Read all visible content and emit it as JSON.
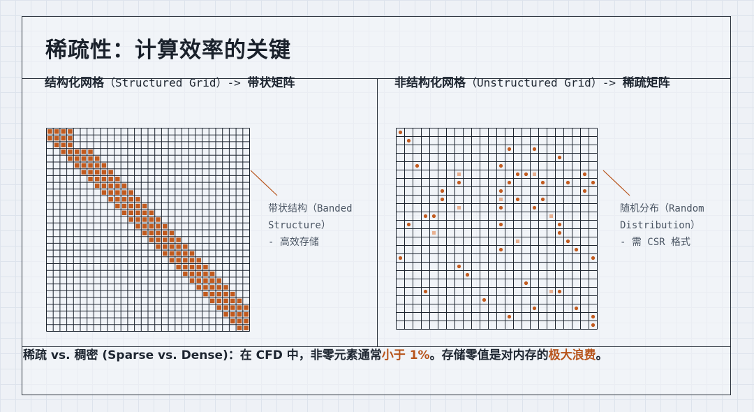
{
  "title": "稀疏性：计算效率的关键",
  "left_panel": {
    "title_zh": "结构化网格",
    "title_en": "（Structured Grid）-> ",
    "title_zh2": "带状矩阵",
    "annotation": [
      "带状结构（Banded",
      "Structure）",
      "- 高效存储"
    ],
    "matrix": {
      "size": 30,
      "band": "main diagonal with width ~5",
      "fill_color": "#c15a1e"
    }
  },
  "right_panel": {
    "title_zh": "非结构化网格",
    "title_en": "（Unstructured Grid）-> ",
    "title_zh2": "稀疏矩阵",
    "annotation": [
      "随机分布（Random",
      "Distribution）",
      "- 需 CSR 格式"
    ],
    "matrix": {
      "size": 24,
      "fill_color": "#c15a1e",
      "faint_color": "#e8b090",
      "points": [
        [
          0,
          0
        ],
        [
          1,
          1
        ],
        [
          2,
          13
        ],
        [
          2,
          16
        ],
        [
          3,
          19
        ],
        [
          4,
          2
        ],
        [
          4,
          12
        ],
        [
          5,
          14
        ],
        [
          5,
          15
        ],
        [
          5,
          22
        ],
        [
          6,
          7
        ],
        [
          6,
          13
        ],
        [
          6,
          17
        ],
        [
          6,
          20
        ],
        [
          6,
          23
        ],
        [
          7,
          5
        ],
        [
          7,
          12
        ],
        [
          7,
          22
        ],
        [
          8,
          5
        ],
        [
          8,
          14
        ],
        [
          8,
          17
        ],
        [
          9,
          12
        ],
        [
          9,
          16
        ],
        [
          10,
          3
        ],
        [
          10,
          4
        ],
        [
          11,
          1
        ],
        [
          11,
          12
        ],
        [
          11,
          19
        ],
        [
          12,
          19
        ],
        [
          13,
          20
        ],
        [
          14,
          12
        ],
        [
          14,
          21
        ],
        [
          15,
          0
        ],
        [
          15,
          23
        ],
        [
          16,
          7
        ],
        [
          17,
          8
        ],
        [
          18,
          15
        ],
        [
          19,
          3
        ],
        [
          19,
          19
        ],
        [
          20,
          10
        ],
        [
          21,
          16
        ],
        [
          21,
          21
        ],
        [
          22,
          13
        ],
        [
          22,
          23
        ],
        [
          23,
          23
        ]
      ],
      "faint": [
        [
          5,
          7
        ],
        [
          5,
          16
        ],
        [
          8,
          12
        ],
        [
          9,
          7
        ],
        [
          10,
          18
        ],
        [
          12,
          4
        ],
        [
          13,
          14
        ],
        [
          19,
          18
        ]
      ]
    }
  },
  "footer": {
    "prefix": "稀疏 vs. 稠密 (Sparse vs. Dense)：在 CFD 中，非零元素通常",
    "highlight1": "小于 1%",
    "middle": "。存储零值是对内存的",
    "highlight2": "极大浪费",
    "suffix": "。"
  },
  "colors": {
    "accent": "#b7541b",
    "grid_line": "#1d2530",
    "frame": "#2a323c"
  }
}
